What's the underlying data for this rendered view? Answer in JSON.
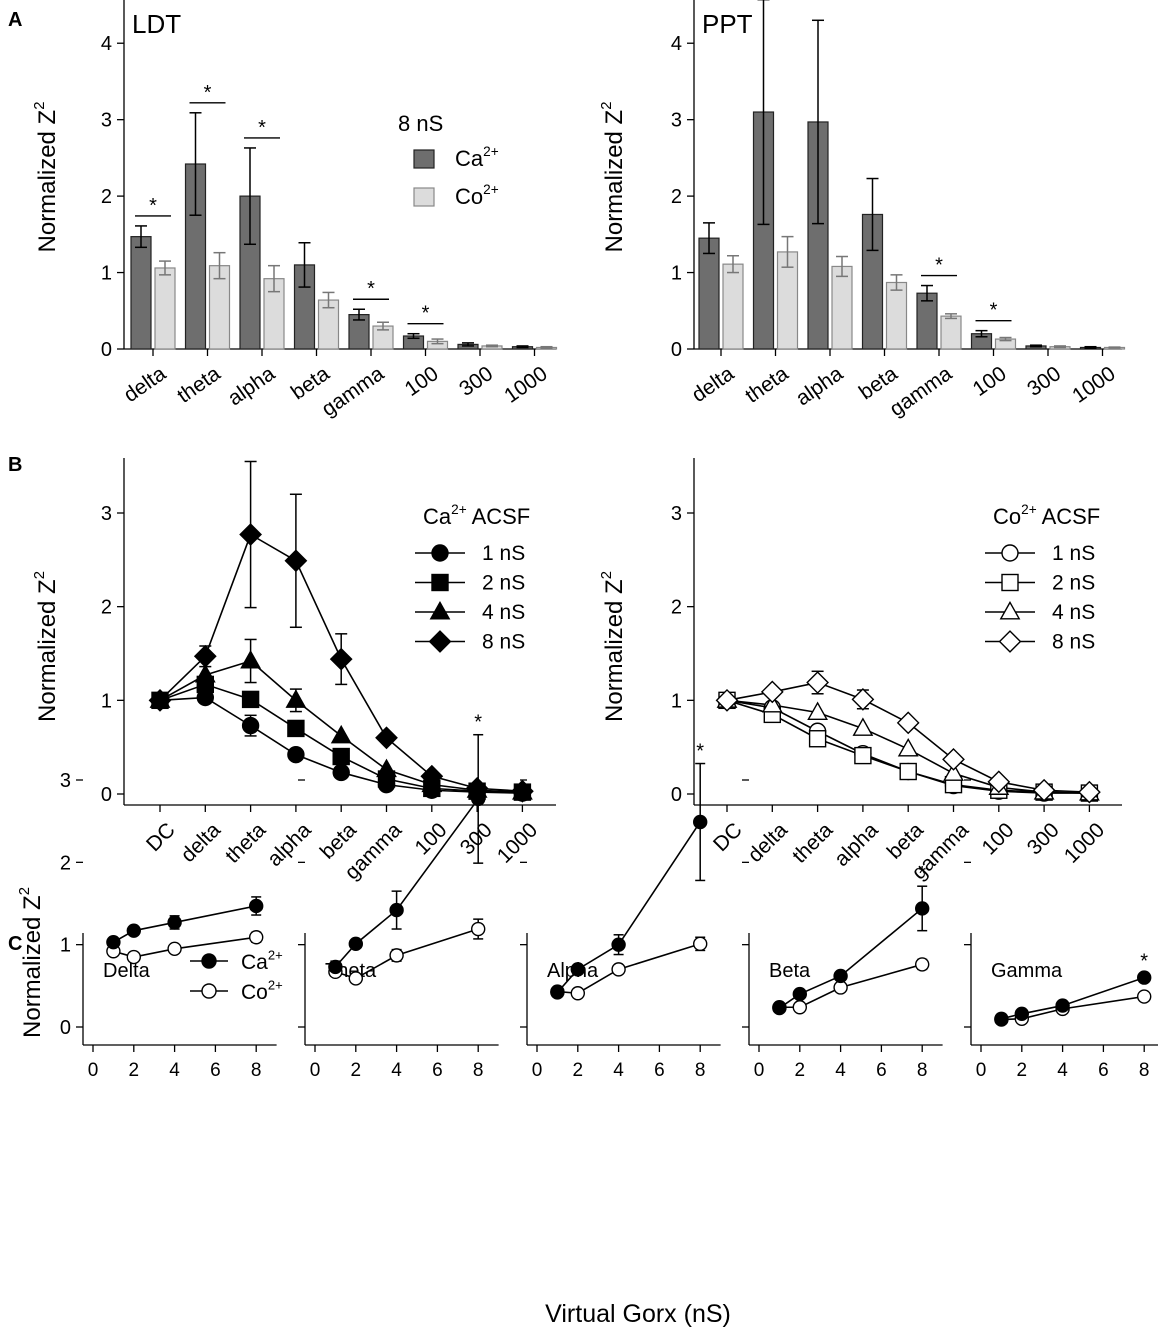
{
  "panel_labels": {
    "A": "A",
    "B": "B",
    "C": "C"
  },
  "chart_data": [
    {
      "id": "A-LDT",
      "type": "bar",
      "title": "LDT",
      "ylabel": "Normalized Z",
      "ylabel_sup": "2",
      "ylim": [
        0,
        4.5
      ],
      "yticks": [
        0,
        1,
        2,
        3,
        4
      ],
      "categories": [
        "delta",
        "theta",
        "alpha",
        "beta",
        "gamma",
        "100",
        "300",
        "1000"
      ],
      "legend": {
        "title": "8 nS",
        "placement": "top-right",
        "entries": [
          {
            "base": "Ca",
            "sup": "2+",
            "color": "#6e6e6e"
          },
          {
            "base": "Co",
            "sup": "2+",
            "color": "#dcdcdc"
          }
        ]
      },
      "series": [
        {
          "name": "Ca2+",
          "color": "#6e6e6e",
          "values": [
            1.47,
            2.42,
            2.0,
            1.1,
            0.45,
            0.17,
            0.06,
            0.03
          ],
          "errors": [
            0.14,
            0.67,
            0.63,
            0.29,
            0.07,
            0.03,
            0.02,
            0.01
          ]
        },
        {
          "name": "Co2+",
          "color": "#dcdcdc",
          "values": [
            1.06,
            1.09,
            0.92,
            0.64,
            0.3,
            0.1,
            0.04,
            0.02
          ],
          "errors": [
            0.09,
            0.17,
            0.17,
            0.1,
            0.05,
            0.03,
            0.01,
            0.01
          ]
        }
      ],
      "significance": [
        "*",
        "*",
        "*",
        "",
        "*",
        "*",
        "",
        ""
      ]
    },
    {
      "id": "A-PPT",
      "type": "bar",
      "title": "PPT",
      "ylabel": "Normalized Z",
      "ylabel_sup": "2",
      "ylim": [
        0,
        4.5
      ],
      "yticks": [
        0,
        1,
        2,
        3,
        4
      ],
      "categories": [
        "delta",
        "theta",
        "alpha",
        "beta",
        "gamma",
        "100",
        "300",
        "1000"
      ],
      "series": [
        {
          "name": "Ca2+",
          "color": "#6e6e6e",
          "values": [
            1.45,
            3.1,
            2.97,
            1.76,
            0.73,
            0.2,
            0.04,
            0.02
          ],
          "errors": [
            0.2,
            1.47,
            1.33,
            0.47,
            0.1,
            0.04,
            0.01,
            0.01
          ]
        },
        {
          "name": "Co2+",
          "color": "#dcdcdc",
          "values": [
            1.11,
            1.27,
            1.08,
            0.87,
            0.43,
            0.13,
            0.03,
            0.02
          ],
          "errors": [
            0.11,
            0.2,
            0.13,
            0.1,
            0.03,
            0.02,
            0.01,
            0.005
          ]
        }
      ],
      "significance": [
        "",
        "",
        "",
        "",
        "*",
        "*",
        "",
        ""
      ]
    },
    {
      "id": "B-Ca",
      "type": "line",
      "ylabel": "Normalized Z",
      "ylabel_sup": "2",
      "ylim": [
        -0.1,
        3.5
      ],
      "yticks": [
        0,
        1,
        2,
        3
      ],
      "categories": [
        "DC",
        "delta",
        "theta",
        "alpha",
        "beta",
        "gamma",
        "100",
        "300",
        "1000"
      ],
      "legend": {
        "base": "Ca",
        "sup": "2+",
        "suffix": " ACSF",
        "placement": "top-right"
      },
      "filled": true,
      "series": [
        {
          "name": "1 nS",
          "marker": "circle",
          "values": [
            1.0,
            1.03,
            0.73,
            0.42,
            0.23,
            0.1,
            0.04,
            0.02,
            0.01
          ],
          "errors": [
            0,
            0,
            0.11,
            0,
            0,
            0,
            0,
            0,
            0
          ]
        },
        {
          "name": "2 nS",
          "marker": "square",
          "values": [
            1.0,
            1.17,
            1.01,
            0.7,
            0.4,
            0.16,
            0.06,
            0.03,
            0.02
          ],
          "errors": [
            0,
            0,
            0,
            0,
            0,
            0,
            0,
            0,
            0
          ]
        },
        {
          "name": "4 nS",
          "marker": "triangle",
          "values": [
            1.0,
            1.27,
            1.42,
            1.0,
            0.62,
            0.26,
            0.1,
            0.04,
            0.02
          ],
          "errors": [
            0,
            0,
            0.23,
            0.12,
            0,
            0,
            0,
            0,
            0
          ]
        },
        {
          "name": "8 nS",
          "marker": "diamond",
          "values": [
            1.0,
            1.47,
            2.77,
            2.49,
            1.44,
            0.6,
            0.19,
            0.06,
            0.03
          ],
          "errors": [
            0,
            0.11,
            0.78,
            0.71,
            0.27,
            0,
            0,
            0,
            0
          ]
        }
      ]
    },
    {
      "id": "B-Co",
      "type": "line",
      "ylabel": "Normalized Z",
      "ylabel_sup": "2",
      "ylim": [
        -0.1,
        3.5
      ],
      "yticks": [
        0,
        1,
        2,
        3
      ],
      "categories": [
        "DC",
        "delta",
        "theta",
        "alpha",
        "beta",
        "gamma",
        "100",
        "300",
        "1000"
      ],
      "legend": {
        "base": "Co",
        "sup": "2+",
        "suffix": " ACSF",
        "placement": "top-right"
      },
      "filled": false,
      "series": [
        {
          "name": "1 nS",
          "marker": "circle",
          "values": [
            1.0,
            0.92,
            0.67,
            0.43,
            0.24,
            0.09,
            0.03,
            0.01,
            0.01
          ],
          "errors": [
            0,
            0,
            0,
            0,
            0,
            0,
            0,
            0,
            0
          ]
        },
        {
          "name": "2 nS",
          "marker": "square",
          "values": [
            1.0,
            0.85,
            0.59,
            0.41,
            0.24,
            0.1,
            0.04,
            0.02,
            0.01
          ],
          "errors": [
            0,
            0,
            0,
            0,
            0,
            0,
            0,
            0,
            0
          ]
        },
        {
          "name": "4 nS",
          "marker": "triangle",
          "values": [
            1.0,
            0.95,
            0.87,
            0.7,
            0.48,
            0.22,
            0.07,
            0.02,
            0.01
          ],
          "errors": [
            0,
            0,
            0,
            0,
            0,
            0,
            0,
            0,
            0
          ]
        },
        {
          "name": "8 nS",
          "marker": "diamond",
          "values": [
            1.0,
            1.09,
            1.19,
            1.01,
            0.76,
            0.37,
            0.13,
            0.04,
            0.02
          ],
          "errors": [
            0,
            0,
            0.12,
            0.1,
            0,
            0,
            0,
            0,
            0
          ]
        }
      ]
    },
    {
      "id": "C",
      "type": "line",
      "ylabel": "Normalized Z",
      "ylabel_sup": "2",
      "xlabel": "Virtual Gorx (nS)",
      "ylim": [
        -0.1,
        3.4
      ],
      "yticks": [
        0,
        1,
        2,
        3
      ],
      "xlim": [
        0,
        9
      ],
      "xticks": [
        0,
        2,
        4,
        6,
        8
      ],
      "x": [
        1,
        2,
        4,
        8
      ],
      "legend": [
        {
          "base": "Ca",
          "sup": "2+"
        },
        {
          "base": "Co",
          "sup": "2+"
        }
      ],
      "subplots": [
        {
          "title": "Delta",
          "ca": [
            1.03,
            1.17,
            1.27,
            1.47
          ],
          "ca_err": [
            0,
            0,
            0.08,
            0.11
          ],
          "co": [
            0.92,
            0.85,
            0.95,
            1.09
          ],
          "co_err": [
            0,
            0,
            0,
            0.06
          ],
          "sig": ""
        },
        {
          "title": "Theta",
          "ca": [
            0.73,
            1.01,
            1.42,
            2.77
          ],
          "ca_err": [
            0.07,
            0,
            0.23,
            0.78
          ],
          "co": [
            0.67,
            0.59,
            0.87,
            1.19
          ],
          "co_err": [
            0,
            0,
            0.07,
            0.12
          ],
          "sig": "*"
        },
        {
          "title": "Alpha",
          "ca": [
            0.42,
            0.7,
            1.0,
            2.49
          ],
          "ca_err": [
            0,
            0,
            0.12,
            0.71
          ],
          "co": [
            0.43,
            0.41,
            0.7,
            1.01
          ],
          "co_err": [
            0,
            0,
            0.05,
            0.08
          ],
          "sig": "*"
        },
        {
          "title": "Beta",
          "ca": [
            0.23,
            0.4,
            0.62,
            1.44
          ],
          "ca_err": [
            0,
            0,
            0,
            0.27
          ],
          "co": [
            0.24,
            0.24,
            0.48,
            0.76
          ],
          "co_err": [
            0,
            0,
            0,
            0.06
          ],
          "sig": "*"
        },
        {
          "title": "Gamma",
          "ca": [
            0.1,
            0.16,
            0.26,
            0.6
          ],
          "ca_err": [
            0,
            0,
            0,
            0.05
          ],
          "co": [
            0.09,
            0.1,
            0.22,
            0.37
          ],
          "co_err": [
            0,
            0,
            0,
            0
          ],
          "sig": "*"
        }
      ]
    }
  ]
}
